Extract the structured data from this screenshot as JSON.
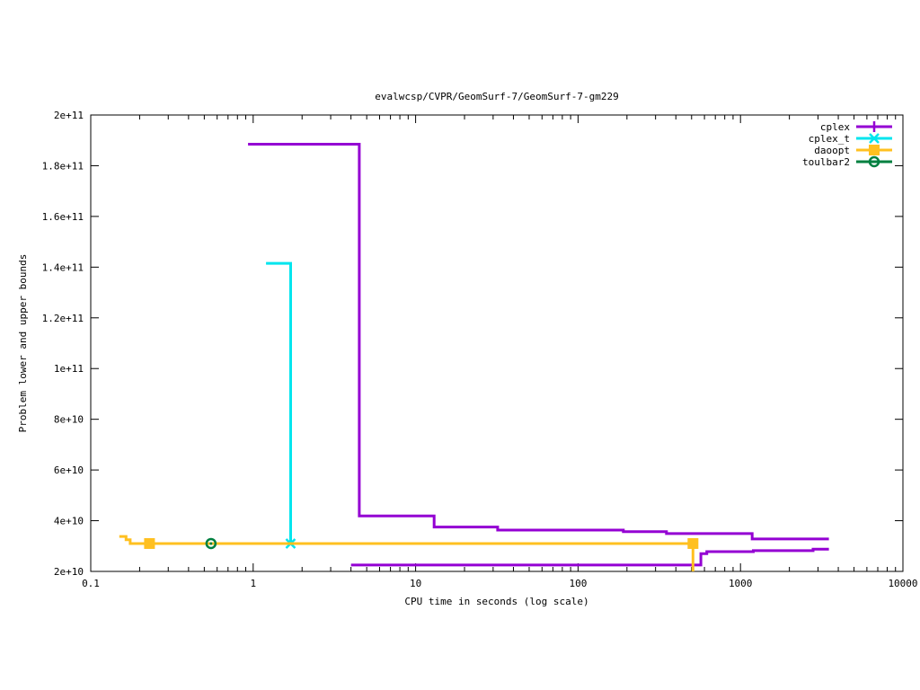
{
  "chart_data": {
    "type": "line",
    "title": "evalwcsp/CVPR/GeomSurf-7/GeomSurf-7-gm229",
    "xlabel": "CPU time in seconds (log scale)",
    "ylabel": "Problem lower and upper bounds",
    "x_scale": "log",
    "xlim": [
      0.1,
      10000
    ],
    "ylim": [
      20000000000,
      200000000000
    ],
    "x_ticks": [
      0.1,
      1,
      10,
      100,
      1000,
      10000
    ],
    "x_tick_labels": [
      "0.1",
      "1",
      "10",
      "100",
      "1000",
      "10000"
    ],
    "y_ticks": [
      20000000000,
      40000000000,
      60000000000,
      80000000000,
      100000000000,
      120000000000,
      140000000000,
      160000000000,
      180000000000,
      200000000000
    ],
    "y_tick_labels": [
      "2e+10",
      "4e+10",
      "6e+10",
      "8e+10",
      "1e+11",
      "1.2e+11",
      "1.4e+11",
      "1.6e+11",
      "1.8e+11",
      "2e+11"
    ],
    "legend_position": "top-right",
    "grid": false,
    "series": [
      {
        "name": "cplex",
        "color": "#9400d3",
        "marker": "plus",
        "lines": [
          {
            "step": true,
            "points": [
              [
                0.93,
                188500000000
              ],
              [
                4.5,
                188500000000
              ],
              [
                4.5,
                41900000000
              ],
              [
                13,
                41900000000
              ],
              [
                13,
                37500000000
              ],
              [
                32,
                37500000000
              ],
              [
                32,
                36300000000
              ],
              [
                190,
                36300000000
              ],
              [
                190,
                35700000000
              ],
              [
                350,
                35700000000
              ],
              [
                350,
                34900000000
              ],
              [
                1180,
                34900000000
              ],
              [
                1180,
                32800000000
              ],
              [
                3500,
                32800000000
              ]
            ]
          },
          {
            "step": true,
            "points": [
              [
                4,
                22500000000
              ],
              [
                570,
                22500000000
              ],
              [
                570,
                27000000000
              ],
              [
                620,
                27000000000
              ],
              [
                620,
                27800000000
              ],
              [
                1200,
                27800000000
              ],
              [
                1200,
                28200000000
              ],
              [
                2800,
                28200000000
              ],
              [
                2800,
                28800000000
              ],
              [
                3500,
                28800000000
              ]
            ]
          }
        ],
        "markers": []
      },
      {
        "name": "cplex_t",
        "color": "#00e5ee",
        "marker": "x",
        "lines": [
          {
            "step": true,
            "points": [
              [
                1.2,
                141500000000
              ],
              [
                1.7,
                141500000000
              ],
              [
                1.7,
                31000000000
              ]
            ]
          }
        ],
        "markers": [
          [
            1.7,
            31000000000
          ]
        ]
      },
      {
        "name": "daoopt",
        "color": "#ffc020",
        "marker": "square",
        "lines": [
          {
            "step": true,
            "points": [
              [
                0.15,
                33800000000
              ],
              [
                0.165,
                33800000000
              ],
              [
                0.165,
                32500000000
              ],
              [
                0.175,
                32500000000
              ],
              [
                0.175,
                31000000000
              ],
              [
                510,
                31000000000
              ],
              [
                510,
                20000000000
              ]
            ]
          }
        ],
        "markers": [
          [
            0.23,
            31000000000
          ],
          [
            510,
            31000000000
          ]
        ]
      },
      {
        "name": "toulbar2",
        "color": "#008040",
        "marker": "circle",
        "lines": [],
        "markers": [
          [
            0.55,
            31000000000
          ]
        ]
      }
    ]
  }
}
